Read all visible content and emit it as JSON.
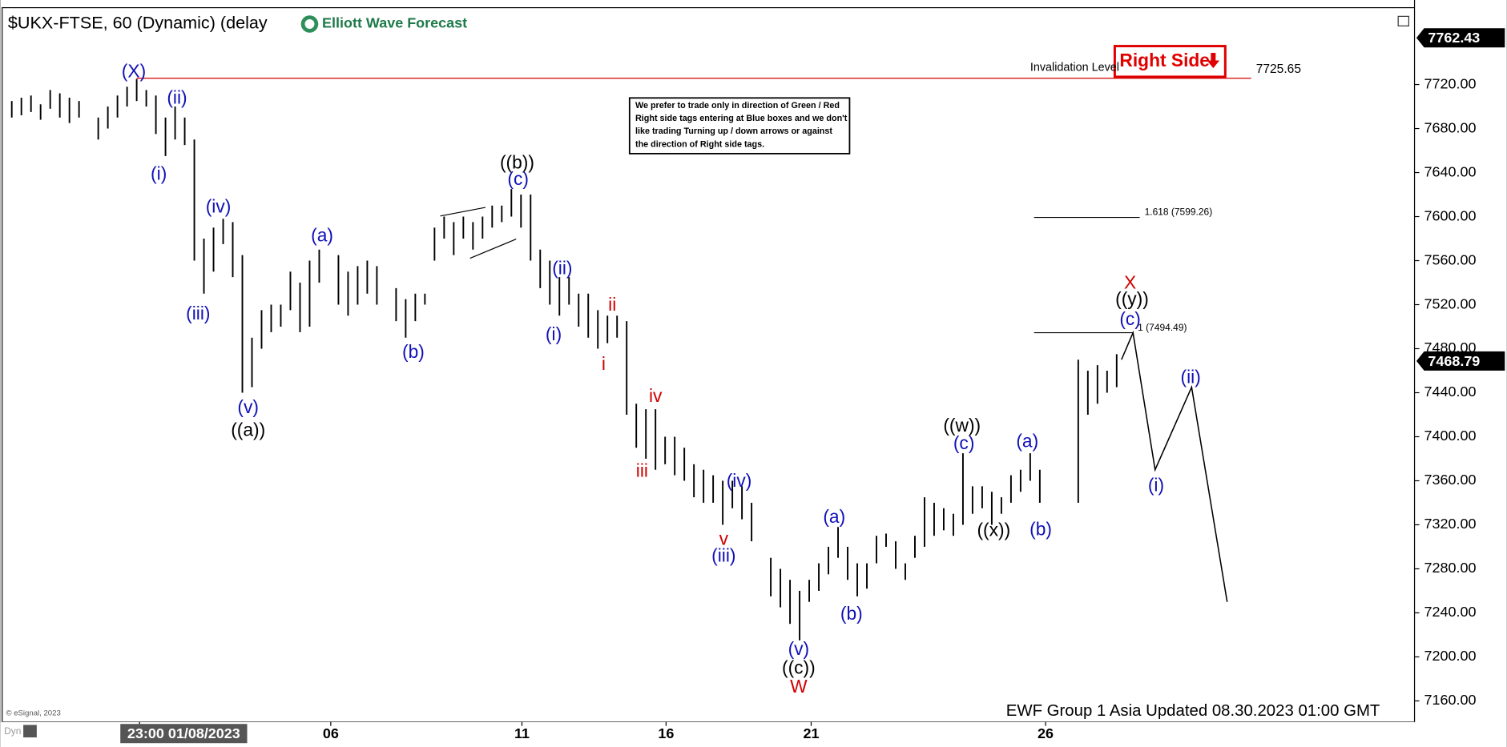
{
  "chart_data": {
    "type": "ohlc",
    "title": "$UKX-FTSE, 60 (Dynamic) (delay",
    "logo": "Elliott Wave Forecast",
    "right_side_tag": "Right Side",
    "note": [
      "We prefer to trade only in direction of Green / Red",
      "Right side tags entering at Blue boxes and we don't",
      "like trading Turning up / down arrows or against",
      "the direction of Right side tags."
    ],
    "footer": "EWF Group 1 Asia Updated 08.30.2023 01:00 GMT",
    "copyright": "© eSignal, 2023",
    "dyn": "Dyn",
    "bar_color": "#000000",
    "xlim": [
      0,
      147
    ],
    "ylim": [
      7140.8,
      7789.8
    ],
    "xticks": [
      {
        "value": 14.3,
        "label": "23:00 01/08/2023"
      },
      {
        "value": 34.2,
        "label": "06"
      },
      {
        "value": 54.1,
        "label": "11"
      },
      {
        "value": 69.1,
        "label": "16"
      },
      {
        "value": 84.2,
        "label": "21"
      },
      {
        "value": 108.6,
        "label": "26"
      }
    ],
    "yticks": [
      {
        "value": 7160,
        "label": "7160.00"
      },
      {
        "value": 7200,
        "label": "7200.00"
      },
      {
        "value": 7240,
        "label": "7240.00"
      },
      {
        "value": 7280,
        "label": "7280.00"
      },
      {
        "value": 7320,
        "label": "7320.00"
      },
      {
        "value": 7360,
        "label": "7360.00"
      },
      {
        "value": 7400,
        "label": "7400.00"
      },
      {
        "value": 7440,
        "label": "7440.00"
      },
      {
        "value": 7480,
        "label": "7480.00"
      },
      {
        "value": 7520,
        "label": "7520.00"
      },
      {
        "value": 7560,
        "label": "7560.00"
      },
      {
        "value": 7600,
        "label": "7600.00"
      },
      {
        "value": 7640,
        "label": "7640.00"
      },
      {
        "value": 7680,
        "label": "7680.00"
      },
      {
        "value": 7720,
        "label": "7720.00"
      }
    ],
    "x": [
      1,
      2,
      3,
      4,
      5,
      6,
      7,
      8,
      10,
      11,
      12,
      13,
      14,
      15,
      16,
      17,
      18,
      19,
      20,
      21,
      22,
      23,
      24,
      25,
      26,
      27,
      28,
      29,
      30,
      31,
      32,
      33,
      35,
      36,
      37,
      38,
      39,
      41,
      42,
      43,
      44,
      45,
      46,
      47,
      48,
      49,
      50,
      51,
      52,
      53,
      54,
      55,
      56,
      57,
      58,
      59,
      60,
      61,
      62,
      63,
      64,
      65,
      66,
      67,
      68,
      69,
      70,
      71,
      72,
      73,
      74,
      75,
      76,
      77,
      78,
      80,
      81,
      82,
      83,
      84,
      85,
      86,
      87,
      88,
      89,
      90,
      91,
      92,
      93,
      94,
      95,
      96,
      97,
      98,
      99,
      100,
      101,
      102,
      103,
      104,
      105,
      106,
      107,
      108,
      112,
      113,
      114,
      115,
      116
    ],
    "low": [
      7690,
      7692,
      7695,
      7688,
      7698,
      7690,
      7685,
      7690,
      7670,
      7680,
      7690,
      7700,
      7705,
      7700,
      7675,
      7655,
      7670,
      7665,
      7560,
      7530,
      7550,
      7575,
      7545,
      7440,
      7445,
      7480,
      7495,
      7500,
      7515,
      7495,
      7500,
      7540,
      7520,
      7510,
      7520,
      7530,
      7520,
      7505,
      7490,
      7505,
      7520,
      7560,
      7580,
      7565,
      7580,
      7570,
      7580,
      7590,
      7595,
      7600,
      7590,
      7560,
      7535,
      7520,
      7510,
      7520,
      7500,
      7490,
      7480,
      7485,
      7490,
      7420,
      7390,
      7380,
      7370,
      7375,
      7365,
      7360,
      7345,
      7340,
      7340,
      7320,
      7335,
      7325,
      7305,
      7255,
      7245,
      7230,
      7215,
      7250,
      7260,
      7275,
      7290,
      7270,
      7255,
      7262,
      7285,
      7300,
      7280,
      7270,
      7290,
      7300,
      7310,
      7315,
      7310,
      7320,
      7330,
      7335,
      7320,
      7330,
      7340,
      7350,
      7360,
      7340,
      7340,
      7420,
      7430,
      7440,
      7445
    ],
    "high": [
      7705,
      7708,
      7710,
      7702,
      7715,
      7712,
      7708,
      7705,
      7690,
      7700,
      7710,
      7718,
      7725,
      7715,
      7710,
      7690,
      7700,
      7690,
      7670,
      7580,
      7590,
      7598,
      7595,
      7565,
      7490,
      7515,
      7520,
      7520,
      7550,
      7540,
      7560,
      7570,
      7565,
      7550,
      7555,
      7560,
      7555,
      7535,
      7525,
      7530,
      7530,
      7590,
      7600,
      7595,
      7600,
      7595,
      7600,
      7610,
      7610,
      7625,
      7620,
      7620,
      7570,
      7560,
      7545,
      7545,
      7530,
      7530,
      7515,
      7510,
      7510,
      7505,
      7430,
      7425,
      7425,
      7400,
      7400,
      7390,
      7375,
      7370,
      7365,
      7360,
      7360,
      7355,
      7340,
      7290,
      7280,
      7270,
      7260,
      7270,
      7285,
      7300,
      7318,
      7300,
      7285,
      7285,
      7310,
      7312,
      7305,
      7285,
      7310,
      7345,
      7340,
      7335,
      7330,
      7385,
      7355,
      7355,
      7350,
      7345,
      7365,
      7370,
      7385,
      7370,
      7470,
      7460,
      7465,
      7460,
      7475
    ],
    "projection": {
      "x": [
        116.5,
        117.7,
        120,
        123.8,
        127.5
      ],
      "values": [
        7470,
        7494.49,
        7370,
        7445,
        7250
      ]
    },
    "invalidation": {
      "label": "Invalidation Level",
      "value": 7725.65,
      "x": [
        14,
        130
      ],
      "color": "#d00000"
    },
    "fib_levels": [
      {
        "label": "1.618 (7599.26)",
        "value": 7599.26,
        "x": [
          107.4,
          118.4
        ]
      },
      {
        "label": "1 (7494.49)",
        "value": 7494.49,
        "x": [
          107.4,
          117.7
        ]
      }
    ],
    "price_tags": [
      7762.43,
      7468.79
    ],
    "annotations": [
      {
        "text": "(X)",
        "x": 13.7,
        "y": 7731,
        "color": "#1010b8"
      },
      {
        "text": "(ii)",
        "x": 18.2,
        "y": 7707,
        "color": "#1010b8"
      },
      {
        "text": "(i)",
        "x": 16.3,
        "y": 7638,
        "color": "#1010b8"
      },
      {
        "text": "(iv)",
        "x": 22.5,
        "y": 7608,
        "color": "#1010b8"
      },
      {
        "text": "(iii)",
        "x": 20.4,
        "y": 7511,
        "color": "#1010b8"
      },
      {
        "text": "(v)",
        "x": 25.6,
        "y": 7426,
        "color": "#1010b8"
      },
      {
        "text": "((a))",
        "x": 25.6,
        "y": 7405,
        "color": "#000000"
      },
      {
        "text": "(a)",
        "x": 33.3,
        "y": 7582,
        "color": "#1010b8"
      },
      {
        "text": "(b)",
        "x": 42.8,
        "y": 7476,
        "color": "#1010b8"
      },
      {
        "text": "((b))",
        "x": 53.6,
        "y": 7648,
        "color": "#000000"
      },
      {
        "text": "(c)",
        "x": 53.7,
        "y": 7633,
        "color": "#1010b8"
      },
      {
        "text": "(ii)",
        "x": 58.3,
        "y": 7552,
        "color": "#1010b8"
      },
      {
        "text": "(i)",
        "x": 57.4,
        "y": 7492,
        "color": "#1010b8"
      },
      {
        "text": "ii",
        "x": 63.5,
        "y": 7519,
        "color": "#d00000"
      },
      {
        "text": "i",
        "x": 62.6,
        "y": 7465,
        "color": "#d00000"
      },
      {
        "text": "iv",
        "x": 68.0,
        "y": 7436,
        "color": "#d00000"
      },
      {
        "text": "iii",
        "x": 66.6,
        "y": 7368,
        "color": "#d00000"
      },
      {
        "text": "(iv)",
        "x": 76.7,
        "y": 7359,
        "color": "#1010b8"
      },
      {
        "text": "v",
        "x": 75.1,
        "y": 7306,
        "color": "#d00000"
      },
      {
        "text": "(iii)",
        "x": 75.1,
        "y": 7291,
        "color": "#1010b8"
      },
      {
        "text": "(a)",
        "x": 86.6,
        "y": 7326,
        "color": "#1010b8"
      },
      {
        "text": "(b)",
        "x": 88.4,
        "y": 7238,
        "color": "#1010b8"
      },
      {
        "text": "(v)",
        "x": 82.9,
        "y": 7206,
        "color": "#1010b8"
      },
      {
        "text": "((c))",
        "x": 82.9,
        "y": 7189,
        "color": "#000000"
      },
      {
        "text": "W",
        "x": 82.9,
        "y": 7172,
        "color": "#d00000"
      },
      {
        "text": "((w))",
        "x": 99.9,
        "y": 7409,
        "color": "#000000"
      },
      {
        "text": "(c)",
        "x": 100.1,
        "y": 7393,
        "color": "#1010b8"
      },
      {
        "text": "((x))",
        "x": 103.2,
        "y": 7314,
        "color": "#000000"
      },
      {
        "text": "(a)",
        "x": 106.7,
        "y": 7395,
        "color": "#1010b8"
      },
      {
        "text": "(b)",
        "x": 108.1,
        "y": 7315,
        "color": "#1010b8"
      },
      {
        "text": "X",
        "x": 117.4,
        "y": 7539,
        "color": "#d00000"
      },
      {
        "text": "((y))",
        "x": 117.6,
        "y": 7524,
        "color": "#000000"
      },
      {
        "text": "(c)",
        "x": 117.4,
        "y": 7506,
        "color": "#1010b8"
      },
      {
        "text": "(ii)",
        "x": 123.7,
        "y": 7453,
        "color": "#1010b8"
      },
      {
        "text": "(i)",
        "x": 120.1,
        "y": 7355,
        "color": "#1010b8"
      }
    ]
  }
}
